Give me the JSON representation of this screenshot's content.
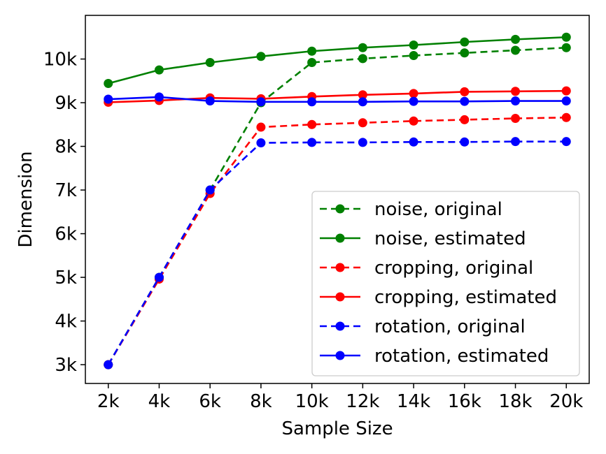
{
  "chart_data": {
    "type": "line",
    "title": "",
    "xlabel": "Sample Size",
    "ylabel": "Dimension",
    "categories": [
      "2k",
      "4k",
      "6k",
      "8k",
      "10k",
      "12k",
      "14k",
      "16k",
      "18k",
      "20k"
    ],
    "x": [
      2000,
      4000,
      6000,
      8000,
      10000,
      12000,
      14000,
      16000,
      18000,
      20000
    ],
    "xlim": [
      1100,
      20900
    ],
    "ylim": [
      2570,
      11000
    ],
    "yticks": [
      3000,
      4000,
      5000,
      6000,
      7000,
      8000,
      9000,
      10000
    ],
    "ytick_labels": [
      "3k",
      "4k",
      "5k",
      "6k",
      "7k",
      "8k",
      "9k",
      "10k"
    ],
    "grid": false,
    "legend_position": "lower-right",
    "series": [
      {
        "name": "noise, original",
        "color": "#008000",
        "style": "dashed",
        "values": [
          3000,
          5000,
          7000,
          9000,
          9920,
          10010,
          10080,
          10140,
          10200,
          10260
        ]
      },
      {
        "name": "noise, estimated",
        "color": "#008000",
        "style": "solid",
        "values": [
          9440,
          9750,
          9920,
          10060,
          10180,
          10260,
          10320,
          10390,
          10450,
          10500
        ]
      },
      {
        "name": "cropping, original",
        "color": "#ff0000",
        "style": "dashed",
        "values": [
          3000,
          4960,
          6920,
          8440,
          8500,
          8540,
          8580,
          8610,
          8640,
          8660
        ]
      },
      {
        "name": "cropping, estimated",
        "color": "#ff0000",
        "style": "solid",
        "values": [
          9010,
          9050,
          9110,
          9090,
          9140,
          9180,
          9210,
          9250,
          9260,
          9270
        ]
      },
      {
        "name": "rotation, original",
        "color": "#0000ff",
        "style": "dashed",
        "values": [
          3000,
          5000,
          7000,
          8080,
          8090,
          8090,
          8100,
          8100,
          8110,
          8110
        ]
      },
      {
        "name": "rotation, estimated",
        "color": "#0000ff",
        "style": "solid",
        "values": [
          9080,
          9130,
          9040,
          9020,
          9020,
          9020,
          9030,
          9030,
          9040,
          9040
        ]
      }
    ]
  }
}
